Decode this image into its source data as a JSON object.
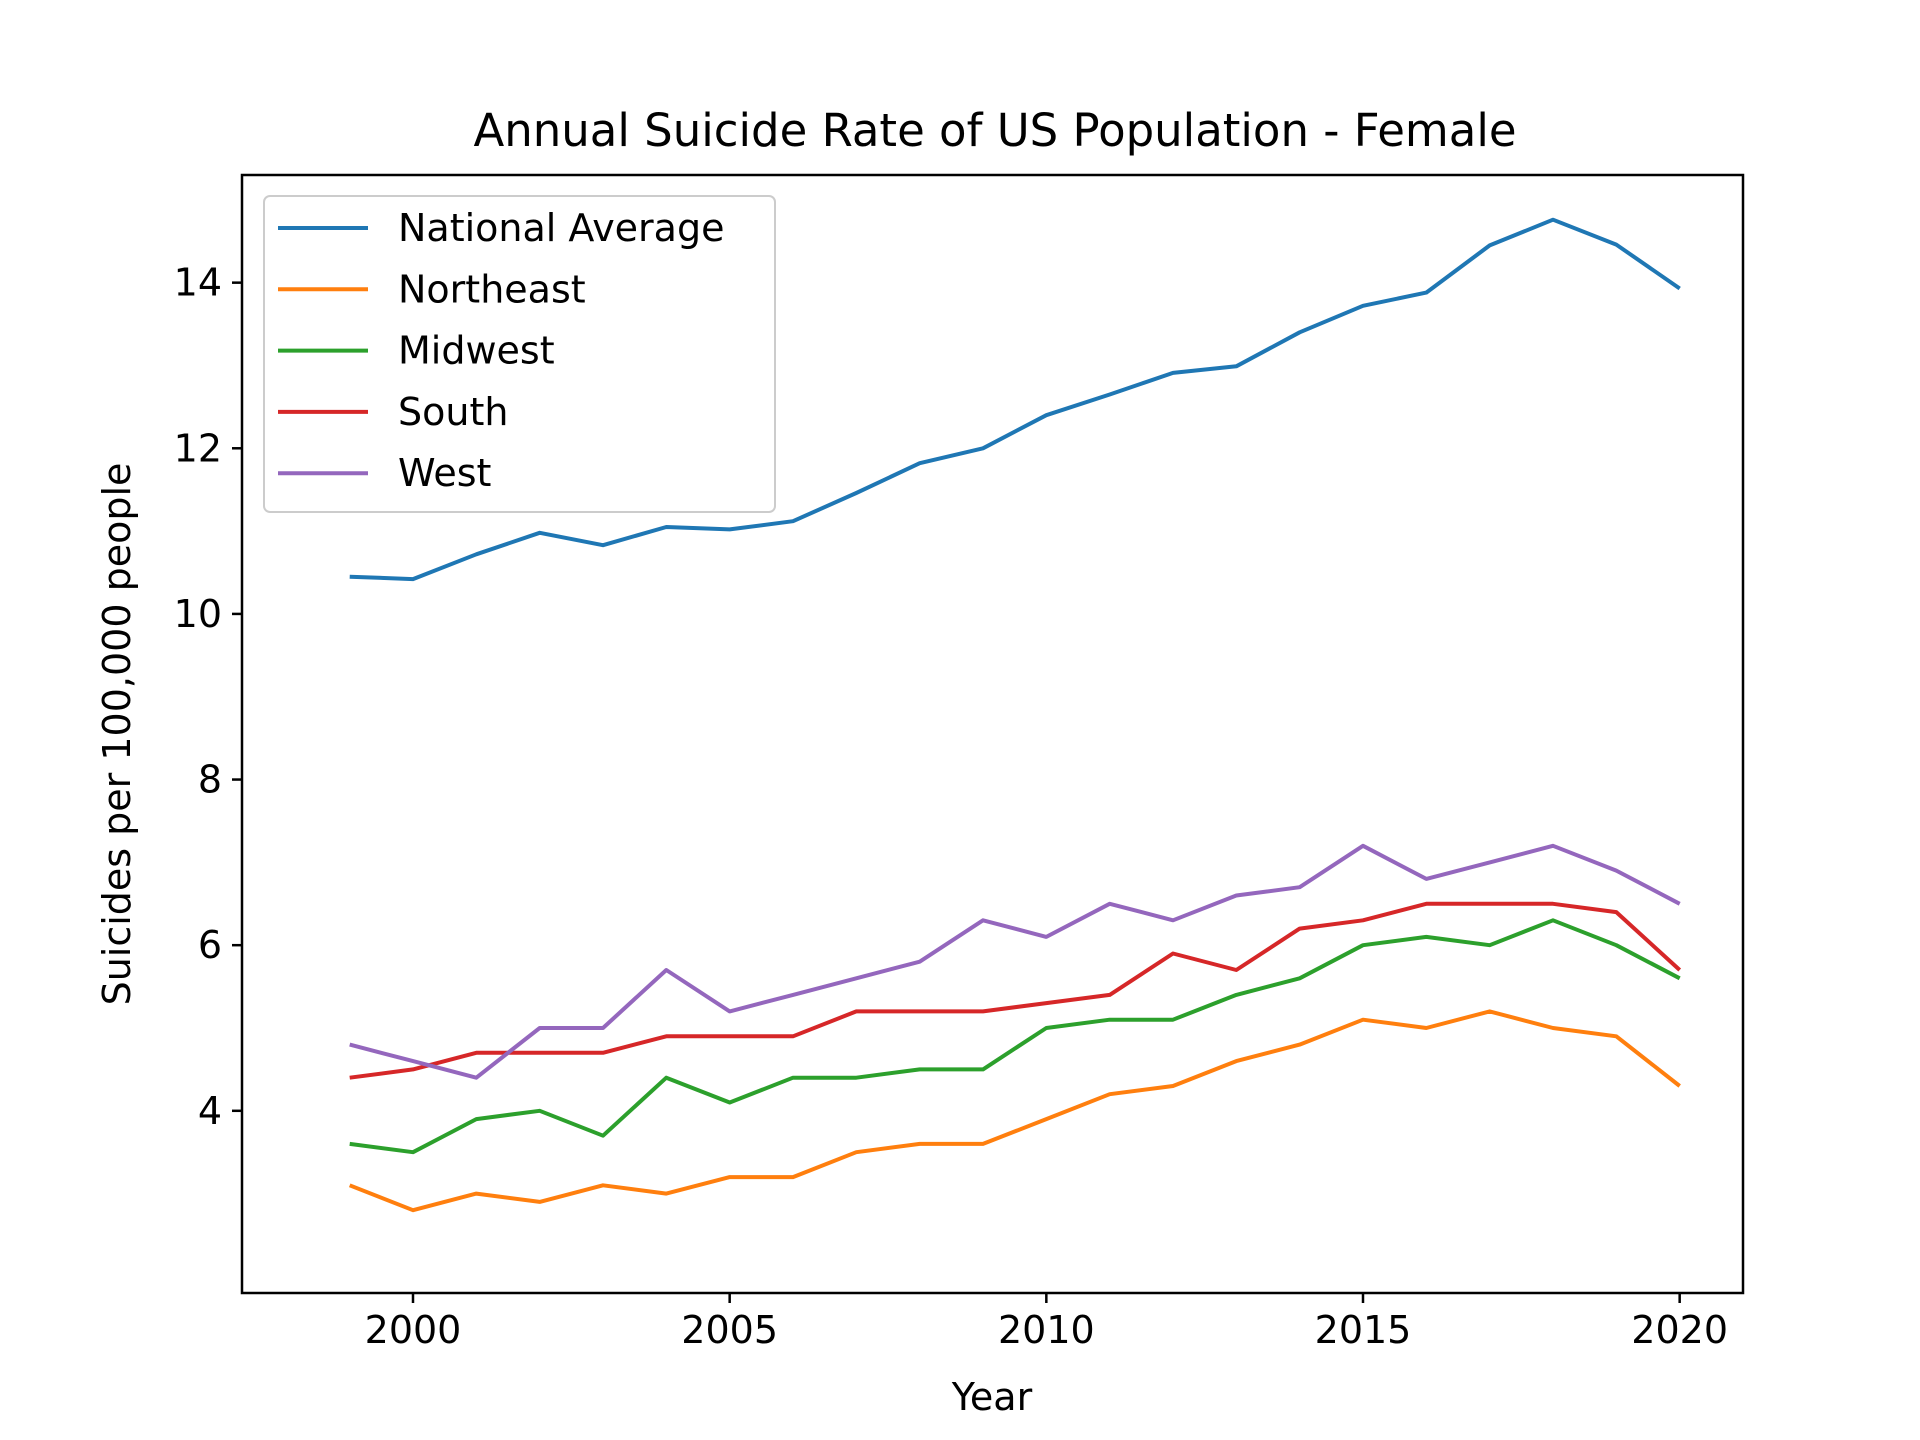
{
  "chart_data": {
    "type": "line",
    "title": "Annual Suicide Rate of US Population - Female",
    "xlabel": "Year",
    "ylabel": "Suicides per 100,000 people",
    "xlim": [
      1997.3,
      2021.0
    ],
    "ylim": [
      1.8,
      15.3
    ],
    "xticks": [
      2000,
      2005,
      2010,
      2015,
      2020
    ],
    "yticks": [
      4,
      6,
      8,
      10,
      12,
      14
    ],
    "grid": false,
    "legend_position": "upper-left",
    "x": [
      1999,
      2000,
      2001,
      2002,
      2003,
      2004,
      2005,
      2006,
      2007,
      2008,
      2009,
      2010,
      2011,
      2012,
      2013,
      2014,
      2015,
      2016,
      2017,
      2018,
      2019,
      2020
    ],
    "series": [
      {
        "name": "National Average",
        "color": "#1f77b4",
        "values": [
          10.45,
          10.42,
          10.72,
          10.98,
          10.83,
          11.05,
          11.02,
          11.12,
          11.46,
          11.82,
          12.0,
          12.4,
          12.65,
          12.91,
          12.99,
          13.4,
          13.72,
          13.88,
          14.45,
          14.76,
          14.46,
          13.93
        ]
      },
      {
        "name": "Northeast",
        "color": "#ff7f0e",
        "values": [
          3.1,
          2.8,
          3.0,
          2.9,
          3.1,
          3.0,
          3.2,
          3.2,
          3.5,
          3.6,
          3.6,
          3.9,
          4.2,
          4.3,
          4.6,
          4.8,
          5.1,
          5.0,
          5.2,
          5.0,
          4.9,
          4.3
        ]
      },
      {
        "name": "Midwest",
        "color": "#2ca02c",
        "values": [
          3.6,
          3.5,
          3.9,
          4.0,
          3.7,
          4.4,
          4.1,
          4.4,
          4.4,
          4.5,
          4.5,
          5.0,
          5.1,
          5.1,
          5.4,
          5.6,
          6.0,
          6.1,
          6.0,
          6.3,
          6.0,
          5.6
        ]
      },
      {
        "name": "South",
        "color": "#d62728",
        "values": [
          4.4,
          4.5,
          4.7,
          4.7,
          4.7,
          4.9,
          4.9,
          4.9,
          5.2,
          5.2,
          5.2,
          5.3,
          5.4,
          5.9,
          5.7,
          6.2,
          6.3,
          6.5,
          6.5,
          6.5,
          6.4,
          5.7
        ]
      },
      {
        "name": "West",
        "color": "#9467bd",
        "values": [
          4.8,
          4.6,
          4.4,
          5.0,
          5.0,
          5.7,
          5.2,
          5.4,
          5.6,
          5.8,
          6.3,
          6.1,
          6.5,
          6.3,
          6.6,
          6.7,
          7.2,
          6.8,
          7.0,
          7.2,
          6.9,
          6.5
        ]
      }
    ]
  }
}
